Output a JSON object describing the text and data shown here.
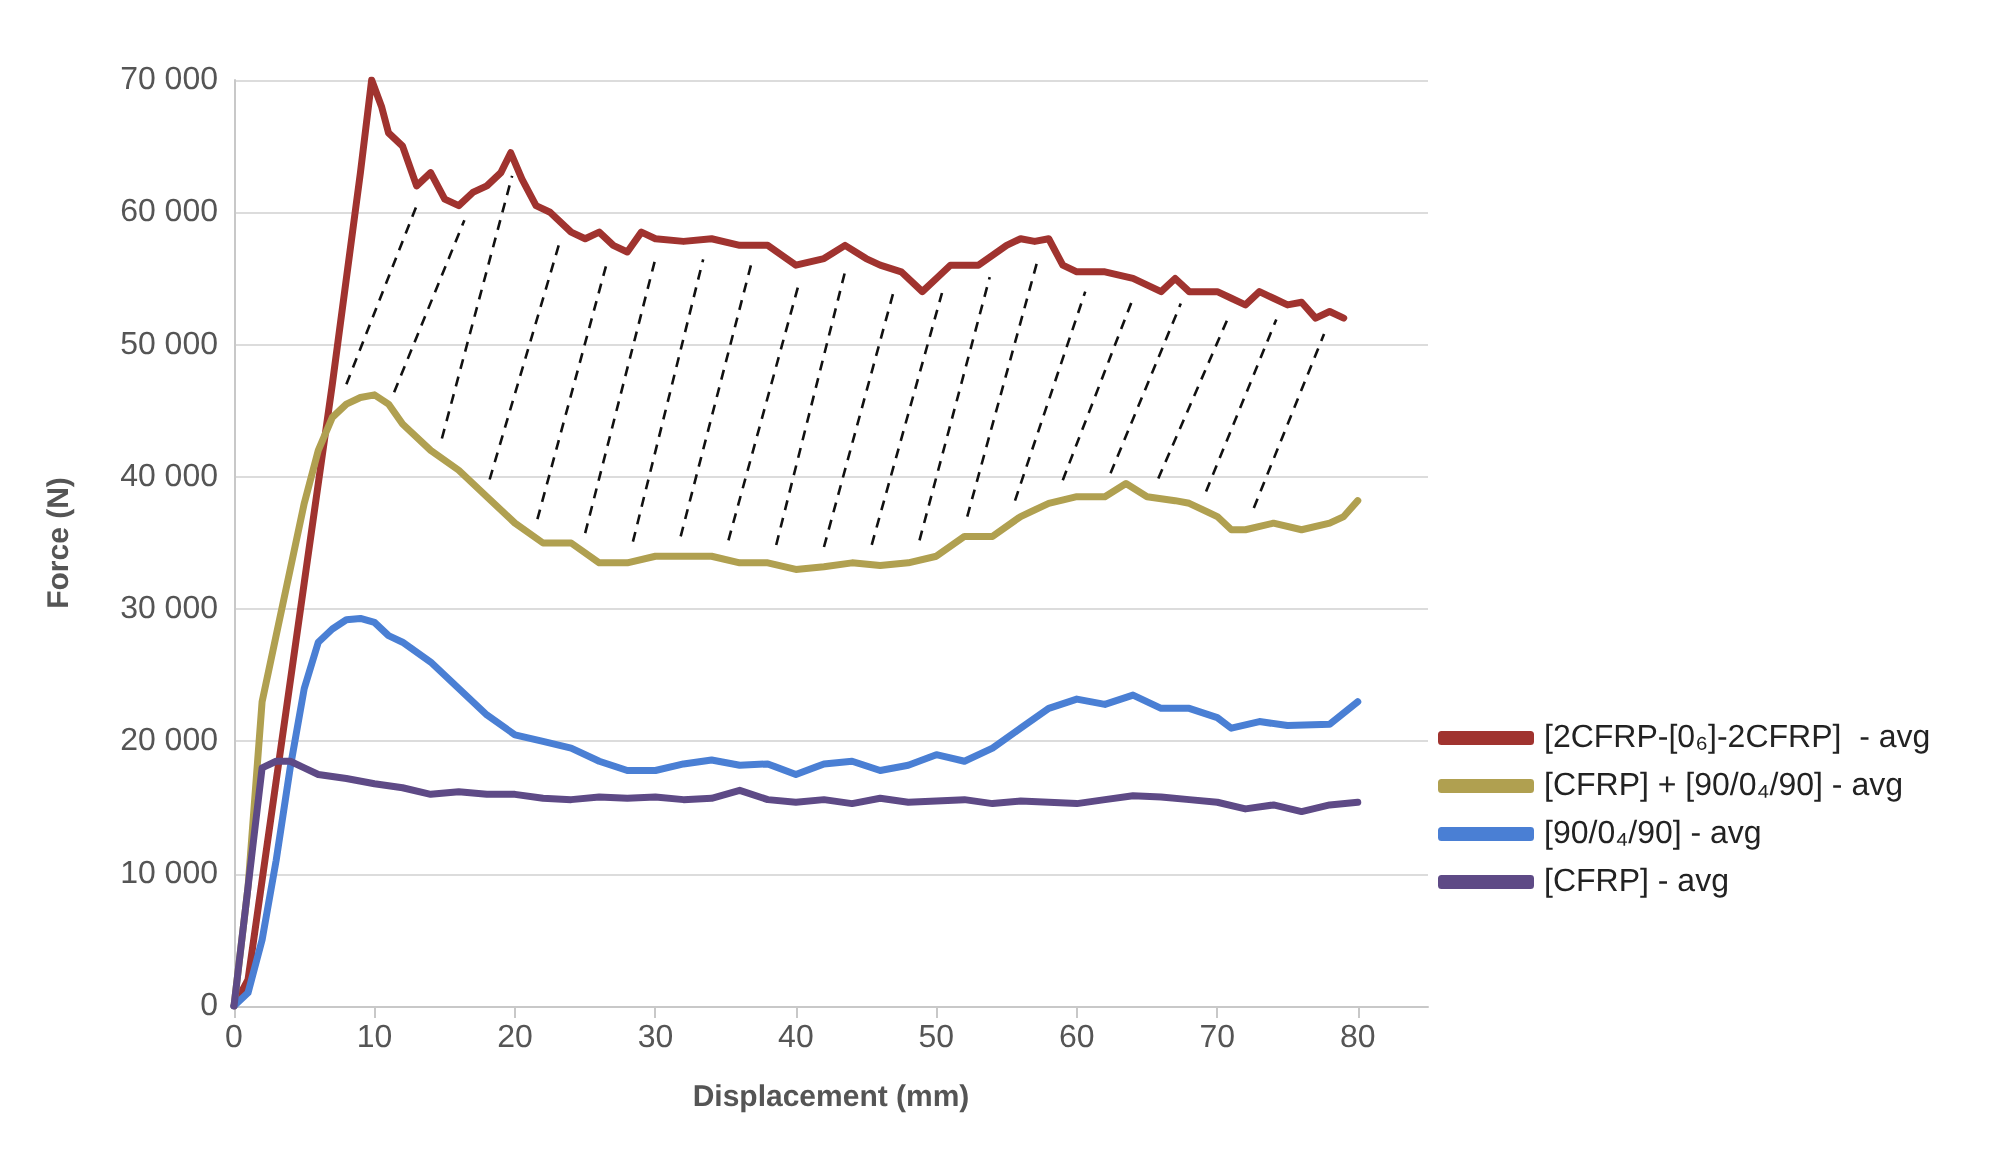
{
  "chart_data": {
    "type": "line",
    "xlabel": "Displacement (mm)",
    "ylabel": "Force (N)",
    "xlim": [
      0,
      85
    ],
    "xticks": [
      0,
      10,
      20,
      30,
      40,
      50,
      60,
      70,
      80
    ],
    "ylim": [
      0,
      70000
    ],
    "yticks": [
      {
        "value": 0,
        "label": "0"
      },
      {
        "value": 10000,
        "label": "10 000"
      },
      {
        "value": 20000,
        "label": "20 000"
      },
      {
        "value": 30000,
        "label": "30 000"
      },
      {
        "value": 40000,
        "label": "40 000"
      },
      {
        "value": 50000,
        "label": "50 000"
      },
      {
        "value": 60000,
        "label": "60 000"
      },
      {
        "value": 70000,
        "label": "70 000"
      }
    ],
    "grid": "y",
    "legend": "right",
    "marker": "none",
    "line_style": "solid",
    "series": [
      {
        "name": "[2CFRP-[0₆]-2CFRP]  - avg",
        "color": "#a0332f",
        "x": [
          0,
          1,
          3,
          5,
          7,
          9,
          9.8,
          10.5,
          11,
          12,
          13,
          14,
          15,
          16,
          17,
          18,
          19,
          19.7,
          20.5,
          21.5,
          22.5,
          24,
          25,
          26,
          27,
          28,
          29,
          30,
          32,
          34,
          36,
          38,
          40,
          42,
          43.5,
          45,
          46,
          47.5,
          49,
          50,
          51,
          53,
          55,
          56,
          57,
          58,
          59,
          60,
          62,
          64,
          66,
          67,
          68,
          70,
          71,
          72,
          73,
          74,
          75,
          76,
          77,
          78,
          79
        ],
        "values": [
          0,
          2000,
          17000,
          32000,
          47000,
          63000,
          70000,
          68000,
          66000,
          65000,
          62000,
          63000,
          61000,
          60500,
          61500,
          62000,
          63000,
          64500,
          62500,
          60500,
          60000,
          58500,
          58000,
          58500,
          57500,
          57000,
          58500,
          58000,
          57800,
          58000,
          57500,
          57500,
          56000,
          56500,
          57500,
          56500,
          56000,
          55500,
          54000,
          55000,
          56000,
          56000,
          57500,
          58000,
          57800,
          58000,
          56000,
          55500,
          55500,
          55000,
          54000,
          55000,
          54000,
          54000,
          53500,
          53000,
          54000,
          53500,
          53000,
          53200,
          52000,
          52500,
          52000
        ]
      },
      {
        "name": "[CFRP] + [90/0₄/90] - avg",
        "color": "#b0a050",
        "x": [
          0,
          1,
          2,
          3,
          4,
          5,
          6,
          7,
          8,
          9,
          10,
          11,
          12,
          14,
          16,
          18,
          20,
          22,
          24,
          26,
          28,
          30,
          32,
          34,
          36,
          38,
          40,
          42,
          44,
          46,
          48,
          50,
          52,
          54,
          56,
          58,
          60,
          62,
          63.5,
          65,
          67,
          68,
          70,
          71,
          72,
          74,
          76,
          78,
          79,
          80
        ],
        "values": [
          0,
          9000,
          23000,
          28000,
          33000,
          38000,
          42000,
          44500,
          45500,
          46000,
          46200,
          45500,
          44000,
          42000,
          40500,
          38500,
          36500,
          35000,
          35000,
          33500,
          33500,
          34000,
          34000,
          34000,
          33500,
          33500,
          33000,
          33200,
          33500,
          33300,
          33500,
          34000,
          35500,
          35500,
          37000,
          38000,
          38500,
          38500,
          39500,
          38500,
          38200,
          38000,
          37000,
          36000,
          36000,
          36500,
          36000,
          36500,
          37000,
          38200
        ]
      },
      {
        "name": "[90/0₄/90] - avg",
        "color": "#4a7fd4",
        "x": [
          0,
          1,
          2,
          3,
          4,
          5,
          6,
          7,
          8,
          9,
          10,
          11,
          12,
          14,
          16,
          18,
          20,
          22,
          24,
          26,
          28,
          30,
          32,
          34,
          36,
          38,
          40,
          42,
          44,
          46,
          48,
          50,
          52,
          54,
          56,
          58,
          60,
          62,
          64,
          66,
          68,
          70,
          71,
          73,
          75,
          78,
          80
        ],
        "values": [
          0,
          1000,
          5000,
          11000,
          18000,
          24000,
          27500,
          28500,
          29200,
          29300,
          29000,
          28000,
          27500,
          26000,
          24000,
          22000,
          20500,
          20000,
          19500,
          18500,
          17800,
          17800,
          18300,
          18600,
          18200,
          18300,
          17500,
          18300,
          18500,
          17800,
          18200,
          19000,
          18500,
          19500,
          21000,
          22500,
          23200,
          22800,
          23500,
          22500,
          22500,
          21800,
          21000,
          21500,
          21200,
          21300,
          23000
        ]
      },
      {
        "name": "[CFRP] - avg",
        "color": "#5e4a86",
        "x": [
          0,
          1,
          2,
          3,
          4,
          5,
          6,
          8,
          10,
          12,
          14,
          16,
          18,
          20,
          22,
          24,
          26,
          28,
          30,
          32,
          34,
          36,
          38,
          40,
          42,
          44,
          46,
          48,
          50,
          52,
          54,
          56,
          58,
          60,
          62,
          64,
          66,
          68,
          70,
          72,
          74,
          76,
          78,
          80
        ],
        "values": [
          0,
          9000,
          18000,
          18500,
          18500,
          18000,
          17500,
          17200,
          16800,
          16500,
          16000,
          16200,
          16000,
          16000,
          15700,
          15600,
          15800,
          15700,
          15800,
          15600,
          15700,
          16300,
          15600,
          15400,
          15600,
          15300,
          15700,
          15400,
          15500,
          15600,
          15300,
          15500,
          15400,
          15300,
          15600,
          15900,
          15800,
          15600,
          15400,
          14900,
          15200,
          14700,
          15200,
          15400
        ]
      }
    ]
  }
}
